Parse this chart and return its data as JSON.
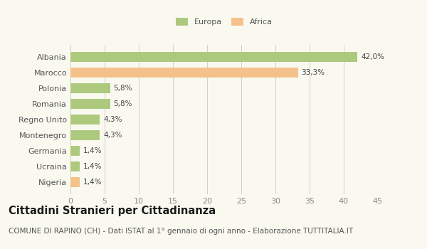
{
  "categories": [
    "Nigeria",
    "Ucraina",
    "Germania",
    "Montenegro",
    "Regno Unito",
    "Romania",
    "Polonia",
    "Marocco",
    "Albania"
  ],
  "values": [
    1.4,
    1.4,
    1.4,
    4.3,
    4.3,
    5.8,
    5.8,
    33.3,
    42.0
  ],
  "labels": [
    "1,4%",
    "1,4%",
    "1,4%",
    "4,3%",
    "4,3%",
    "5,8%",
    "5,8%",
    "33,3%",
    "42,0%"
  ],
  "colors": [
    "#f5c18b",
    "#adc97e",
    "#adc97e",
    "#adc97e",
    "#adc97e",
    "#adc97e",
    "#adc97e",
    "#f5c18b",
    "#adc97e"
  ],
  "legend_labels": [
    "Europa",
    "Africa"
  ],
  "legend_colors": [
    "#adc97e",
    "#f5c18b"
  ],
  "xlim": [
    0,
    45
  ],
  "xticks": [
    0,
    5,
    10,
    15,
    20,
    25,
    30,
    35,
    40,
    45
  ],
  "title": "Cittadini Stranieri per Cittadinanza",
  "subtitle": "COMUNE DI RAPINO (CH) - Dati ISTAT al 1° gennaio di ogni anno - Elaborazione TUTTITALIA.IT",
  "bg_color": "#f9f9f0",
  "bar_height": 0.65,
  "title_fontsize": 10.5,
  "subtitle_fontsize": 7.5,
  "label_fontsize": 7.5,
  "ytick_fontsize": 8,
  "xtick_fontsize": 8
}
